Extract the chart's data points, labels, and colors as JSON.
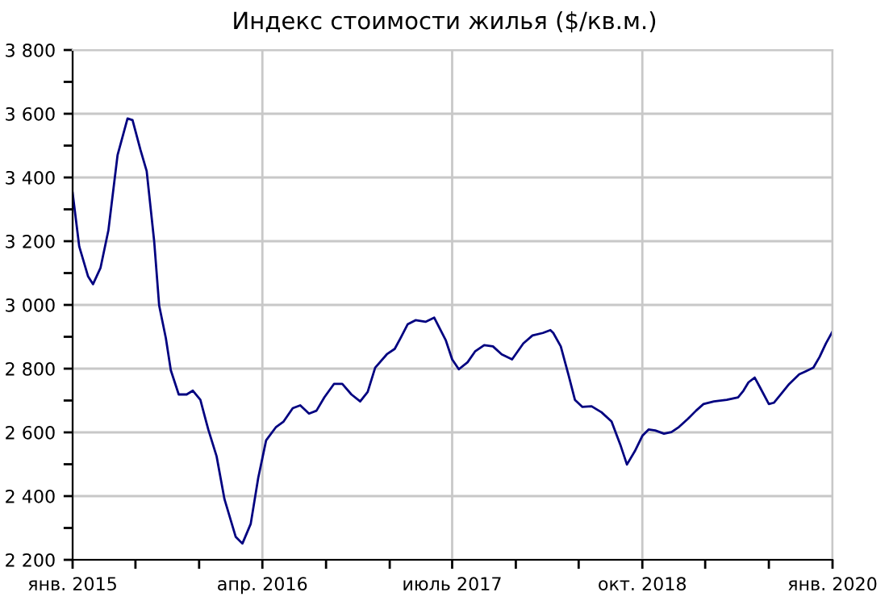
{
  "chart_data": {
    "type": "line",
    "title": "Индекс стоимости жилья ($/кв.м.)",
    "x": [
      "2015-01-01",
      "2015-01-17",
      "2015-02-07",
      "2015-02-19",
      "2015-03-09",
      "2015-03-28",
      "2015-04-19",
      "2015-05-13",
      "2015-05-25",
      "2015-06-13",
      "2015-06-28",
      "2015-07-16",
      "2015-07-28",
      "2015-08-13",
      "2015-08-25",
      "2015-09-13",
      "2015-10-02",
      "2015-10-17",
      "2015-11-04",
      "2015-11-23",
      "2015-12-13",
      "2016-01-01",
      "2016-01-28",
      "2016-02-13",
      "2016-03-04",
      "2016-03-22",
      "2016-04-10",
      "2016-05-04",
      "2016-05-22",
      "2016-06-13",
      "2016-07-01",
      "2016-07-22",
      "2016-08-09",
      "2016-08-28",
      "2016-09-20",
      "2016-10-10",
      "2016-11-01",
      "2016-11-22",
      "2016-12-10",
      "2016-12-28",
      "2017-01-25",
      "2017-02-13",
      "2017-02-27",
      "2017-03-16",
      "2017-04-04",
      "2017-04-28",
      "2017-05-19",
      "2017-06-16",
      "2017-07-01",
      "2017-07-17",
      "2017-08-07",
      "2017-08-25",
      "2017-09-16",
      "2017-10-07",
      "2017-10-28",
      "2017-11-22",
      "2017-12-19",
      "2018-01-10",
      "2018-02-04",
      "2018-02-22",
      "2018-03-01",
      "2018-03-19",
      "2018-04-07",
      "2018-04-22",
      "2018-05-10",
      "2018-06-01",
      "2018-06-25",
      "2018-07-19",
      "2018-08-10",
      "2018-08-25",
      "2018-09-13",
      "2018-10-01",
      "2018-10-16",
      "2018-11-01",
      "2018-11-22",
      "2018-12-10",
      "2018-12-28",
      "2019-01-19",
      "2019-02-07",
      "2019-02-25",
      "2019-03-22",
      "2019-04-22",
      "2019-05-19",
      "2019-06-01",
      "2019-06-13",
      "2019-06-28",
      "2019-07-10",
      "2019-08-01",
      "2019-08-13",
      "2019-09-01",
      "2019-09-19",
      "2019-10-13",
      "2019-10-28",
      "2019-11-16",
      "2019-12-01",
      "2019-12-16",
      "2020-01-01"
    ],
    "series": [
      {
        "color": "#000080",
        "values": [
          3352,
          3183,
          3090,
          3065,
          3116,
          3234,
          3470,
          3585,
          3580,
          3487,
          3420,
          3200,
          2998,
          2896,
          2795,
          2719,
          2719,
          2731,
          2702,
          2609,
          2525,
          2390,
          2272,
          2251,
          2313,
          2457,
          2575,
          2617,
          2634,
          2676,
          2685,
          2659,
          2668,
          2710,
          2752,
          2752,
          2719,
          2697,
          2727,
          2803,
          2845,
          2862,
          2896,
          2939,
          2952,
          2947,
          2960,
          2888,
          2829,
          2798,
          2820,
          2854,
          2874,
          2870,
          2845,
          2829,
          2879,
          2904,
          2912,
          2921,
          2912,
          2870,
          2778,
          2702,
          2680,
          2682,
          2663,
          2634,
          2558,
          2499,
          2541,
          2589,
          2609,
          2606,
          2596,
          2601,
          2617,
          2643,
          2668,
          2689,
          2697,
          2702,
          2710,
          2731,
          2757,
          2772,
          2743,
          2689,
          2693,
          2723,
          2752,
          2782,
          2791,
          2803,
          2837,
          2879,
          2917
        ]
      }
    ],
    "xlim": [
      "2015-01-01",
      "2020-01-01"
    ],
    "xticks": [
      {
        "value": "2015-01-01",
        "label": "янв. 2015"
      },
      {
        "value": "2015-06-01",
        "label": null
      },
      {
        "value": "2015-11-01",
        "label": null
      },
      {
        "value": "2016-04-01",
        "label": "апр. 2016"
      },
      {
        "value": "2016-09-01",
        "label": null
      },
      {
        "value": "2017-02-01",
        "label": null
      },
      {
        "value": "2017-07-01",
        "label": "июль 2017"
      },
      {
        "value": "2017-12-01",
        "label": null
      },
      {
        "value": "2018-05-01",
        "label": null
      },
      {
        "value": "2018-10-01",
        "label": "окт. 2018"
      },
      {
        "value": "2019-03-01",
        "label": null
      },
      {
        "value": "2019-08-01",
        "label": null
      },
      {
        "value": "2020-01-01",
        "label": "янв. 2020"
      }
    ],
    "ylim": [
      2200,
      3800
    ],
    "yticks": [
      {
        "value": 2200,
        "label": "2 200"
      },
      {
        "value": 2300,
        "label": null
      },
      {
        "value": 2400,
        "label": "2 400"
      },
      {
        "value": 2500,
        "label": null
      },
      {
        "value": 2600,
        "label": "2 600"
      },
      {
        "value": 2700,
        "label": null
      },
      {
        "value": 2800,
        "label": "2 800"
      },
      {
        "value": 2900,
        "label": null
      },
      {
        "value": 3000,
        "label": "3 000"
      },
      {
        "value": 3100,
        "label": null
      },
      {
        "value": 3200,
        "label": "3 200"
      },
      {
        "value": 3300,
        "label": null
      },
      {
        "value": 3400,
        "label": "3 400"
      },
      {
        "value": 3500,
        "label": null
      },
      {
        "value": 3600,
        "label": "3 600"
      },
      {
        "value": 3700,
        "label": null
      },
      {
        "value": 3800,
        "label": "3 800"
      }
    ],
    "grid": true,
    "marker": "none",
    "line_style": "solid"
  }
}
